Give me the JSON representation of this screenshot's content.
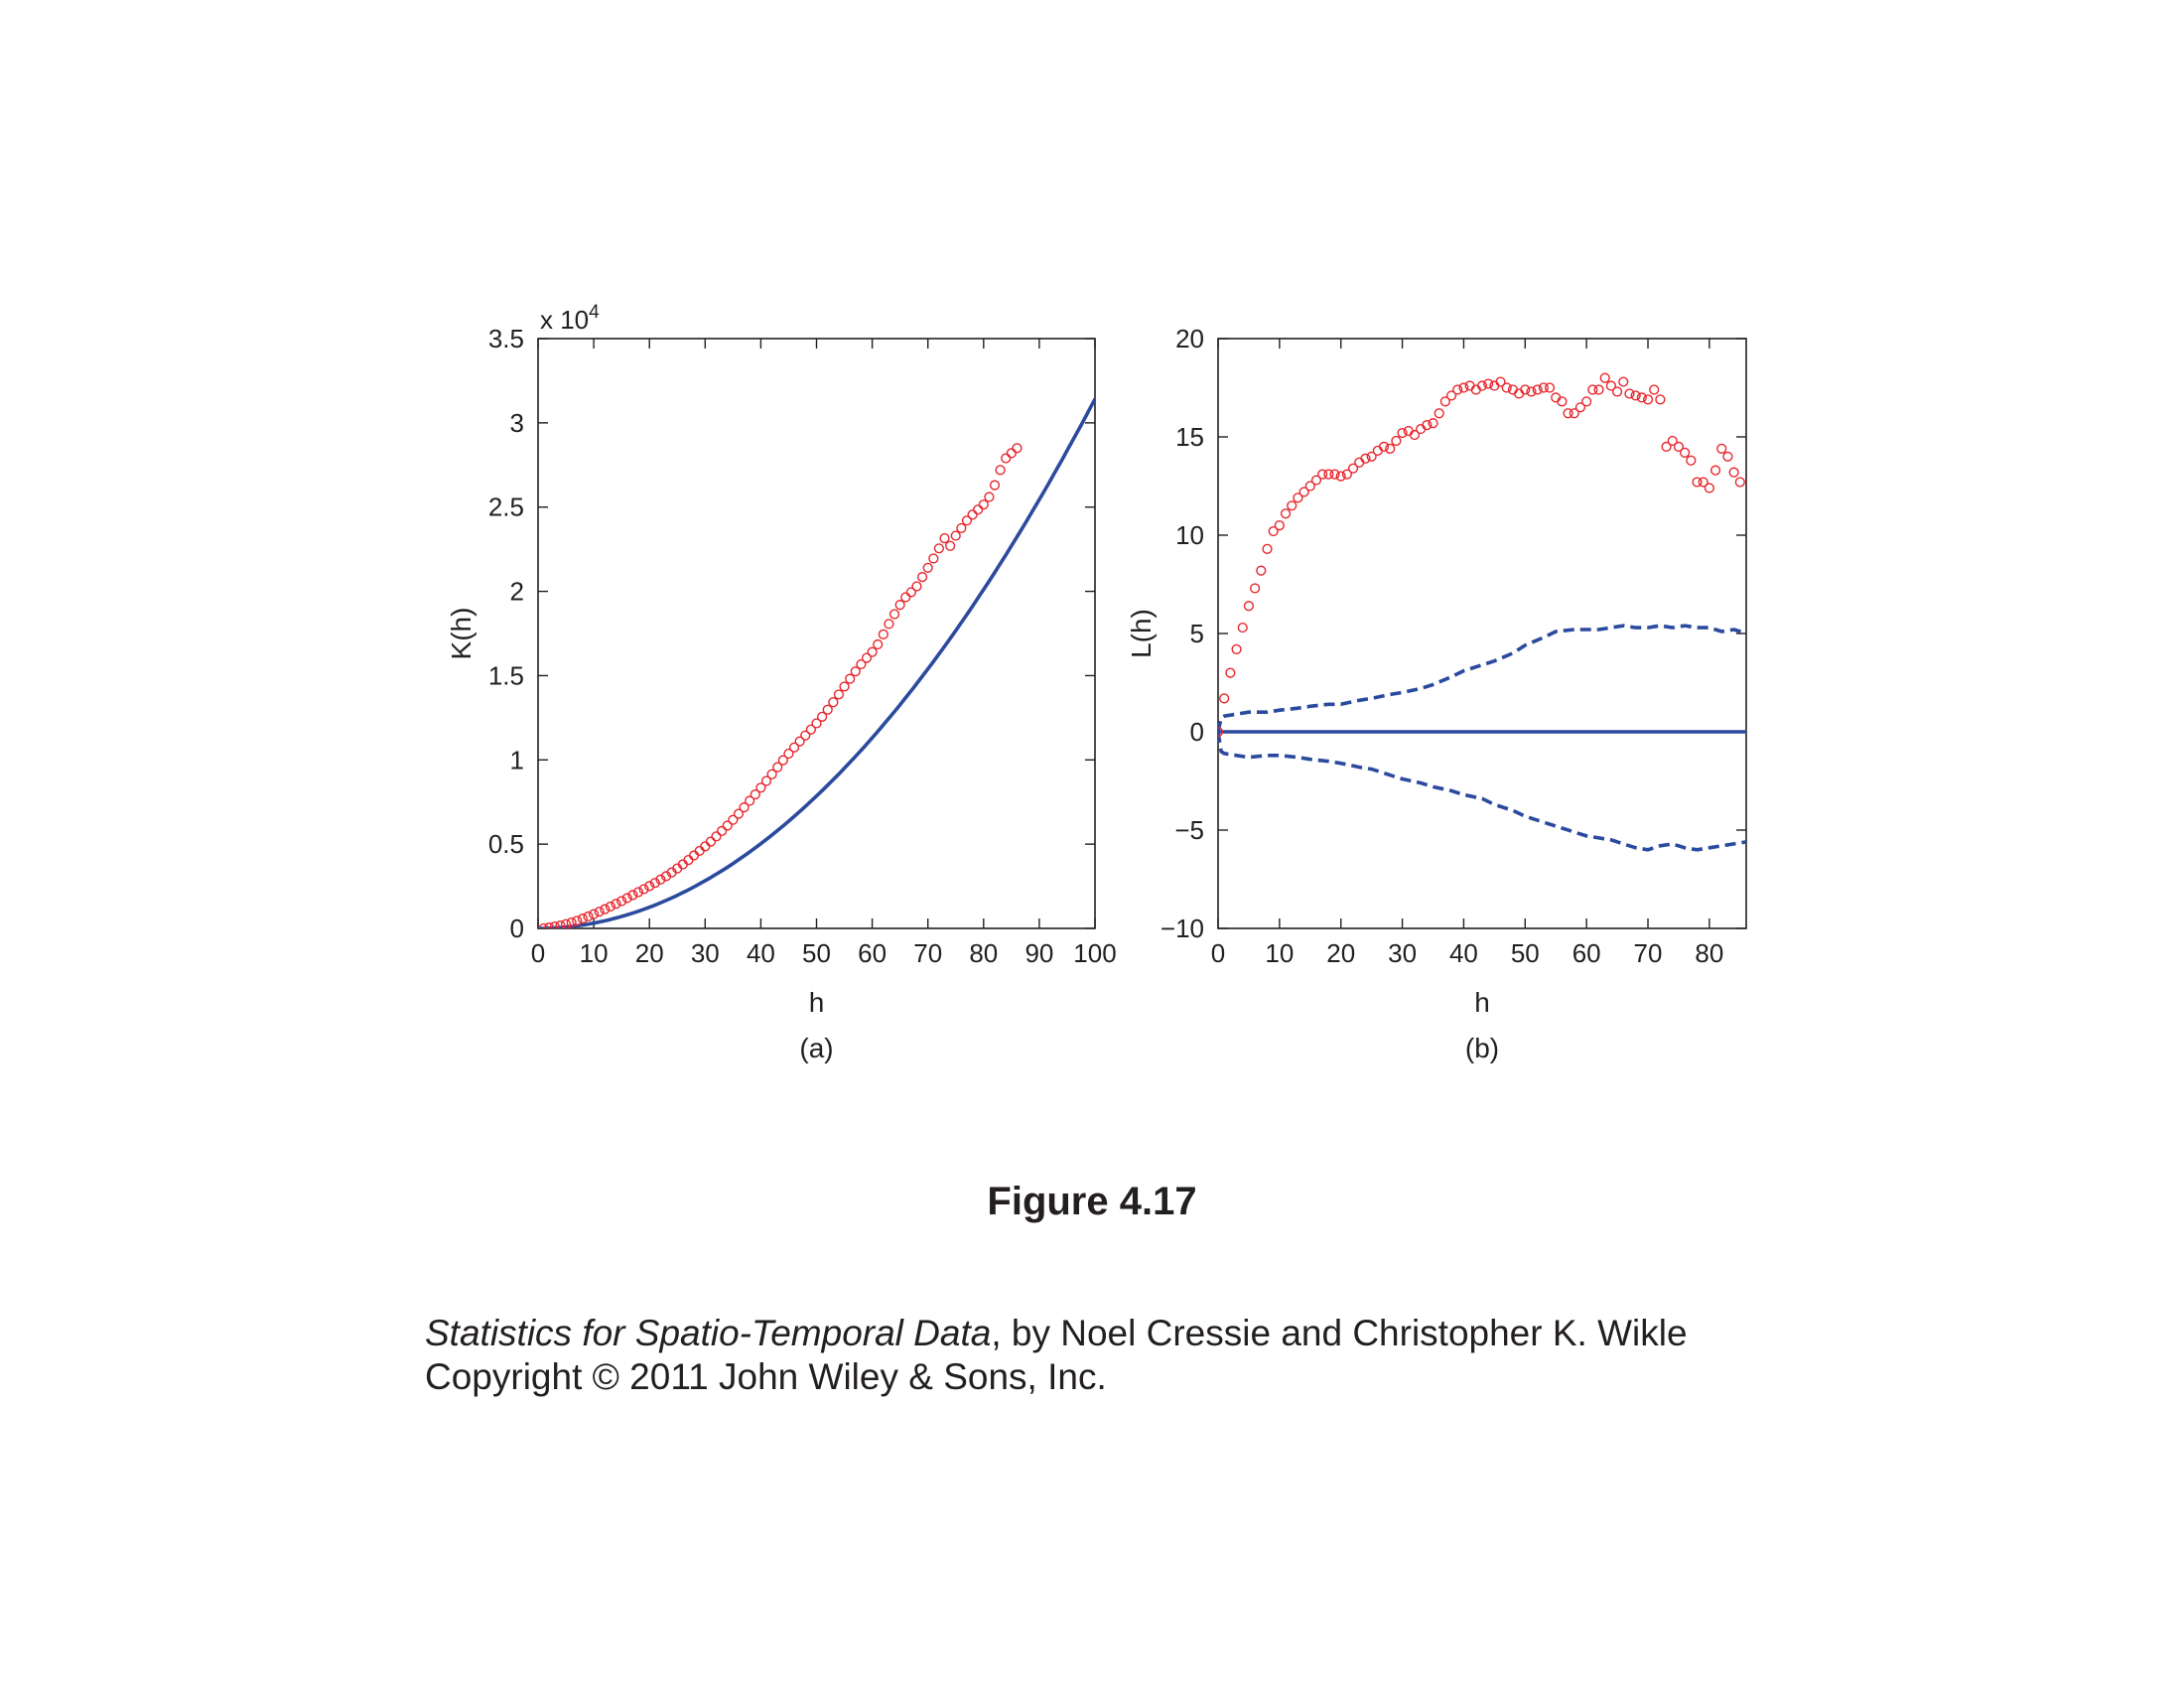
{
  "figure": {
    "title": "Figure 4.17"
  },
  "credits": {
    "book_title": "Statistics for Spatio-Temporal Data",
    "authors_text": ", by Noel Cressie and Christopher K. Wikle",
    "copyright": "Copyright © 2011 John Wiley & Sons, Inc."
  },
  "colors": {
    "observed_points": "#e8262d",
    "theoretical_line": "#2b4a9e",
    "axes": "#231f20"
  },
  "chart_data": [
    {
      "type": "scatter",
      "panel_label": "(a)",
      "xlabel": "h",
      "ylabel": "K(h)",
      "exponent_label": "x 10",
      "exponent_power": "4",
      "xlim": [
        0,
        100
      ],
      "ylim": [
        0,
        35000
      ],
      "xticks": [
        0,
        10,
        20,
        30,
        40,
        50,
        60,
        70,
        80,
        90,
        100
      ],
      "xtick_labels": [
        "0",
        "10",
        "20",
        "30",
        "40",
        "50",
        "60",
        "70",
        "80",
        "90",
        "100"
      ],
      "yticks": [
        0,
        5000,
        10000,
        15000,
        20000,
        25000,
        30000,
        35000
      ],
      "ytick_labels": [
        "0",
        "0.5",
        "1",
        "1.5",
        "2",
        "2.5",
        "3",
        "3.5"
      ],
      "grid": false,
      "series": [
        {
          "kind": "markers",
          "marker": "open-circle",
          "x": [
            1,
            2,
            3,
            4,
            5,
            6,
            7,
            8,
            9,
            10,
            11,
            12,
            13,
            14,
            15,
            16,
            17,
            18,
            19,
            20,
            21,
            22,
            23,
            24,
            25,
            26,
            27,
            28,
            29,
            30,
            31,
            32,
            33,
            34,
            35,
            36,
            37,
            38,
            39,
            40,
            41,
            42,
            43,
            44,
            45,
            46,
            47,
            48,
            49,
            50,
            51,
            52,
            53,
            54,
            55,
            56,
            57,
            58,
            59,
            60,
            61,
            62,
            63,
            64,
            65,
            66,
            67,
            68,
            69,
            70,
            71,
            72,
            73,
            74,
            75,
            76,
            77,
            78,
            79,
            80,
            81,
            82,
            83,
            84,
            85,
            86
          ],
          "y": [
            0,
            50,
            110,
            170,
            250,
            350,
            450,
            580,
            710,
            850,
            990,
            1140,
            1300,
            1460,
            1620,
            1800,
            1980,
            2150,
            2330,
            2510,
            2700,
            2900,
            3100,
            3320,
            3560,
            3800,
            4060,
            4330,
            4600,
            4870,
            5150,
            5460,
            5780,
            6100,
            6440,
            6800,
            7180,
            7570,
            7950,
            8350,
            8750,
            9150,
            9570,
            9980,
            10370,
            10740,
            11100,
            11450,
            11800,
            12170,
            12560,
            12980,
            13420,
            13880,
            14350,
            14810,
            15250,
            15670,
            16050,
            16400,
            16850,
            17450,
            18070,
            18650,
            19200,
            19650,
            19950,
            20300,
            20850,
            21400,
            21950,
            22550,
            23150,
            22700,
            23300,
            23750,
            24200,
            24550,
            24850,
            25150,
            25600,
            26300,
            27200,
            27900,
            28200,
            28500
          ]
        },
        {
          "kind": "line",
          "style": "solid",
          "formula": "pi*h^2",
          "x_range": [
            0,
            100
          ]
        }
      ]
    },
    {
      "type": "scatter",
      "panel_label": "(b)",
      "xlabel": "h",
      "ylabel": "L(h)",
      "xlim": [
        0,
        86
      ],
      "ylim": [
        -10,
        20
      ],
      "xticks": [
        0,
        10,
        20,
        30,
        40,
        50,
        60,
        70,
        80
      ],
      "xtick_labels": [
        "0",
        "10",
        "20",
        "30",
        "40",
        "50",
        "60",
        "70",
        "80"
      ],
      "yticks": [
        -10,
        -5,
        0,
        5,
        10,
        15,
        20
      ],
      "ytick_labels": [
        "−10",
        "−5",
        "0",
        "5",
        "10",
        "15",
        "20"
      ],
      "grid": false,
      "series": [
        {
          "kind": "markers",
          "marker": "open-circle",
          "x": [
            0,
            1,
            2,
            3,
            4,
            5,
            6,
            7,
            8,
            9,
            10,
            11,
            12,
            13,
            14,
            15,
            16,
            17,
            18,
            19,
            20,
            21,
            22,
            23,
            24,
            25,
            26,
            27,
            28,
            29,
            30,
            31,
            32,
            33,
            34,
            35,
            36,
            37,
            38,
            39,
            40,
            41,
            42,
            43,
            44,
            45,
            46,
            47,
            48,
            49,
            50,
            51,
            52,
            53,
            54,
            55,
            56,
            57,
            58,
            59,
            60,
            61,
            62,
            63,
            64,
            65,
            66,
            67,
            68,
            69,
            70,
            71,
            72,
            73,
            74,
            75,
            76,
            77,
            78,
            79,
            80,
            81,
            82,
            83,
            84,
            85
          ],
          "y": [
            0,
            1.7,
            3.0,
            4.2,
            5.3,
            6.4,
            7.3,
            8.2,
            9.3,
            10.2,
            10.5,
            11.1,
            11.5,
            11.9,
            12.2,
            12.5,
            12.8,
            13.1,
            13.1,
            13.1,
            13.0,
            13.1,
            13.4,
            13.7,
            13.9,
            14.0,
            14.3,
            14.5,
            14.4,
            14.8,
            15.2,
            15.3,
            15.1,
            15.4,
            15.6,
            15.7,
            16.2,
            16.8,
            17.1,
            17.4,
            17.5,
            17.6,
            17.4,
            17.6,
            17.7,
            17.6,
            17.8,
            17.5,
            17.4,
            17.2,
            17.4,
            17.3,
            17.4,
            17.5,
            17.5,
            17.0,
            16.8,
            16.2,
            16.2,
            16.5,
            16.8,
            17.4,
            17.4,
            18.0,
            17.6,
            17.3,
            17.8,
            17.2,
            17.1,
            17.0,
            16.9,
            17.4,
            16.9,
            14.5,
            14.8,
            14.5,
            14.2,
            13.8,
            12.7,
            12.7,
            12.4,
            13.3,
            14.4,
            14.0,
            13.2,
            12.7
          ]
        },
        {
          "kind": "line",
          "style": "solid",
          "x": [
            0,
            86
          ],
          "y": [
            0,
            0
          ]
        },
        {
          "kind": "line",
          "style": "dashed",
          "x": [
            0,
            0.5,
            1,
            3,
            5,
            8,
            10,
            13,
            15,
            18,
            20,
            23,
            25,
            28,
            30,
            33,
            35,
            38,
            40,
            43,
            45,
            48,
            50,
            53,
            55,
            58,
            60,
            62,
            64,
            66,
            68,
            70,
            72,
            74,
            76,
            78,
            80,
            82,
            84,
            86
          ],
          "y": [
            0,
            0.7,
            0.8,
            0.9,
            1.0,
            1.0,
            1.1,
            1.2,
            1.3,
            1.4,
            1.4,
            1.6,
            1.7,
            1.9,
            2.0,
            2.2,
            2.4,
            2.8,
            3.1,
            3.4,
            3.6,
            4.0,
            4.4,
            4.8,
            5.1,
            5.2,
            5.2,
            5.2,
            5.3,
            5.4,
            5.3,
            5.3,
            5.4,
            5.3,
            5.4,
            5.3,
            5.3,
            5.1,
            5.2,
            5.0
          ]
        },
        {
          "kind": "line",
          "style": "dashed",
          "x": [
            0,
            0.5,
            1,
            3,
            5,
            8,
            10,
            13,
            15,
            18,
            20,
            23,
            25,
            28,
            30,
            33,
            35,
            38,
            40,
            43,
            45,
            48,
            50,
            53,
            55,
            58,
            60,
            62,
            64,
            66,
            68,
            70,
            72,
            74,
            76,
            78,
            80,
            82,
            84,
            86
          ],
          "y": [
            0,
            -1.0,
            -1.1,
            -1.2,
            -1.3,
            -1.2,
            -1.2,
            -1.3,
            -1.4,
            -1.5,
            -1.6,
            -1.8,
            -1.9,
            -2.2,
            -2.4,
            -2.6,
            -2.8,
            -3.0,
            -3.2,
            -3.4,
            -3.7,
            -4.0,
            -4.3,
            -4.6,
            -4.8,
            -5.1,
            -5.3,
            -5.4,
            -5.5,
            -5.7,
            -5.9,
            -6.0,
            -5.8,
            -5.7,
            -5.9,
            -6.0,
            -5.9,
            -5.8,
            -5.7,
            -5.6
          ]
        }
      ]
    }
  ]
}
